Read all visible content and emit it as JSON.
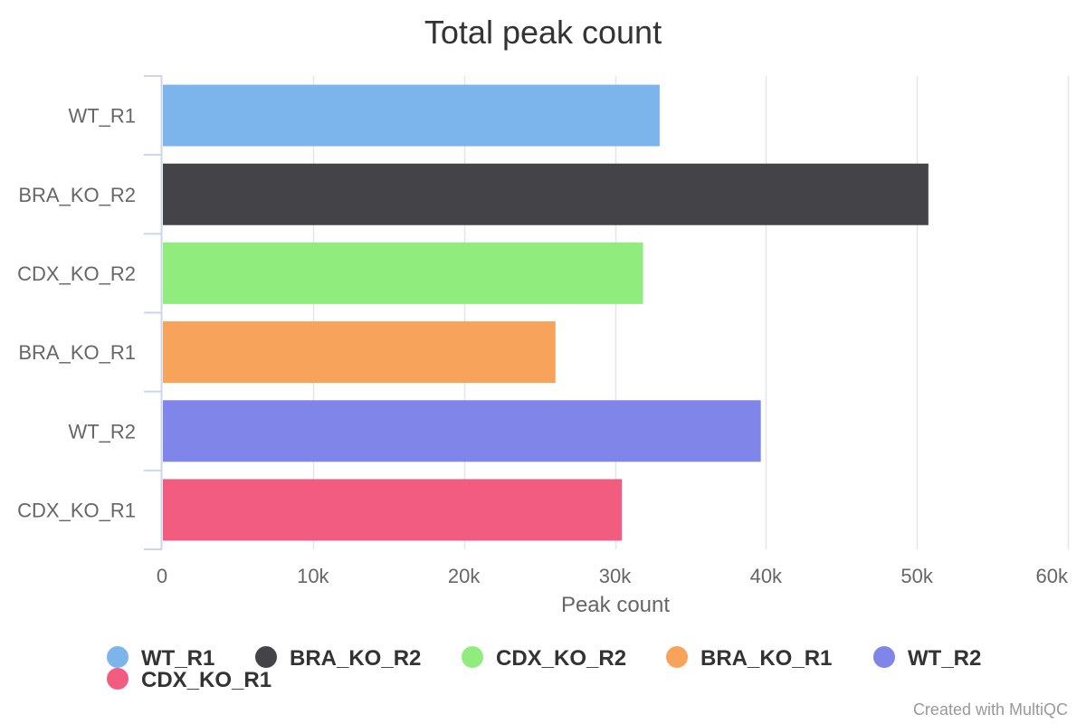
{
  "chart_data": {
    "type": "bar",
    "orientation": "horizontal",
    "title": "Total peak count",
    "xlabel": "Peak count",
    "ylabel": "",
    "categories": [
      "WT_R1",
      "BRA_KO_R2",
      "CDX_KO_R2",
      "BRA_KO_R1",
      "WT_R2",
      "CDX_KO_R1"
    ],
    "values": [
      32900,
      50700,
      31800,
      26000,
      39600,
      30400
    ],
    "colors": [
      "#7cb5ec",
      "#434348",
      "#90ed7d",
      "#f7a35c",
      "#8085e9",
      "#f15c80"
    ],
    "xlim": [
      0,
      60000
    ],
    "x_ticks": [
      0,
      10000,
      20000,
      30000,
      40000,
      50000,
      60000
    ],
    "x_tick_labels": [
      "0",
      "10k",
      "20k",
      "30k",
      "40k",
      "50k",
      "60k"
    ],
    "grid": true,
    "legend_placement": "bottom",
    "legend": [
      "WT_R1",
      "BRA_KO_R2",
      "CDX_KO_R2",
      "BRA_KO_R1",
      "WT_R2",
      "CDX_KO_R1"
    ]
  },
  "credit": "Created with MultiQC"
}
